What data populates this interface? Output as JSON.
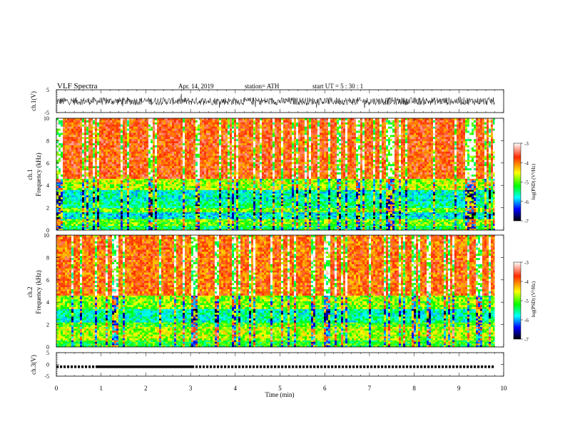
{
  "header": {
    "title": "VLF  Spectra",
    "date": "Apr. 14, 2019",
    "station": "station= ATH",
    "start_ut": "start  UT  =    5  : 30 : 1"
  },
  "colorbar": {
    "label": "log(PSD) (V²/Hz)",
    "ticks": [
      -3,
      -4,
      -5,
      -6,
      -7
    ],
    "colormap": [
      "#ffffff",
      "#ff2a00",
      "#ffff00",
      "#00ff00",
      "#00ffff",
      "#0000ff",
      "#000000"
    ]
  },
  "chart_data": [
    {
      "type": "line",
      "name": "ch1-waveform",
      "ylabel": "ch.1(V)",
      "ylim": [
        -5,
        5
      ],
      "yticks": [
        5,
        -5
      ],
      "x_range_min": [
        0,
        10
      ],
      "data_end_min": 9.8,
      "description_values": "dense noisy waveform, amplitude roughly -2.5 to 2.5 V"
    },
    {
      "type": "heatmap",
      "name": "ch1-spectrogram",
      "ylabel": "ch.1\nFrequency  (kHz)",
      "ylim": [
        0,
        10
      ],
      "yticks": [
        0,
        2,
        4,
        6,
        8,
        10
      ],
      "x_range_min": [
        0,
        10
      ],
      "data_end_min": 9.8,
      "bands_khz": [
        {
          "from": 0.0,
          "to": 0.4,
          "level": -5.2
        },
        {
          "from": 0.4,
          "to": 1.0,
          "level": -4.8
        },
        {
          "from": 1.0,
          "to": 1.6,
          "level": -5.6
        },
        {
          "from": 1.6,
          "to": 2.0,
          "level": -4.8
        },
        {
          "from": 2.0,
          "to": 2.6,
          "level": -5.3
        },
        {
          "from": 2.6,
          "to": 3.6,
          "level": -5.5
        },
        {
          "from": 3.6,
          "to": 4.6,
          "level": -4.6
        },
        {
          "from": 4.6,
          "to": 10.0,
          "level": -3.7
        }
      ]
    },
    {
      "type": "heatmap",
      "name": "ch2-spectrogram",
      "ylabel": "ch.2\nFrequency  (kHz)",
      "ylim": [
        0,
        10
      ],
      "yticks": [
        0,
        2,
        4,
        6,
        8,
        10
      ],
      "x_range_min": [
        0,
        10
      ],
      "data_end_min": 9.8,
      "bands_khz": [
        {
          "from": 0.0,
          "to": 0.6,
          "level": -5.0
        },
        {
          "from": 0.6,
          "to": 1.8,
          "level": -4.6
        },
        {
          "from": 1.8,
          "to": 2.2,
          "level": -4.9
        },
        {
          "from": 2.2,
          "to": 3.4,
          "level": -5.4
        },
        {
          "from": 3.4,
          "to": 4.6,
          "level": -4.7
        },
        {
          "from": 4.6,
          "to": 10.0,
          "level": -3.8
        }
      ]
    },
    {
      "type": "line",
      "name": "ch3-voltage",
      "ylabel": "ch.3(V)",
      "ylim": [
        -5,
        5
      ],
      "yticks": [
        5,
        0,
        -5
      ],
      "value_v": -1.0,
      "x_range_min": [
        0,
        10
      ],
      "data_end_min": 9.8
    }
  ],
  "time_axis": {
    "xlabel": "Time  (min)",
    "ticks": [
      0,
      1,
      2,
      3,
      4,
      5,
      6,
      7,
      8,
      9,
      10
    ]
  }
}
